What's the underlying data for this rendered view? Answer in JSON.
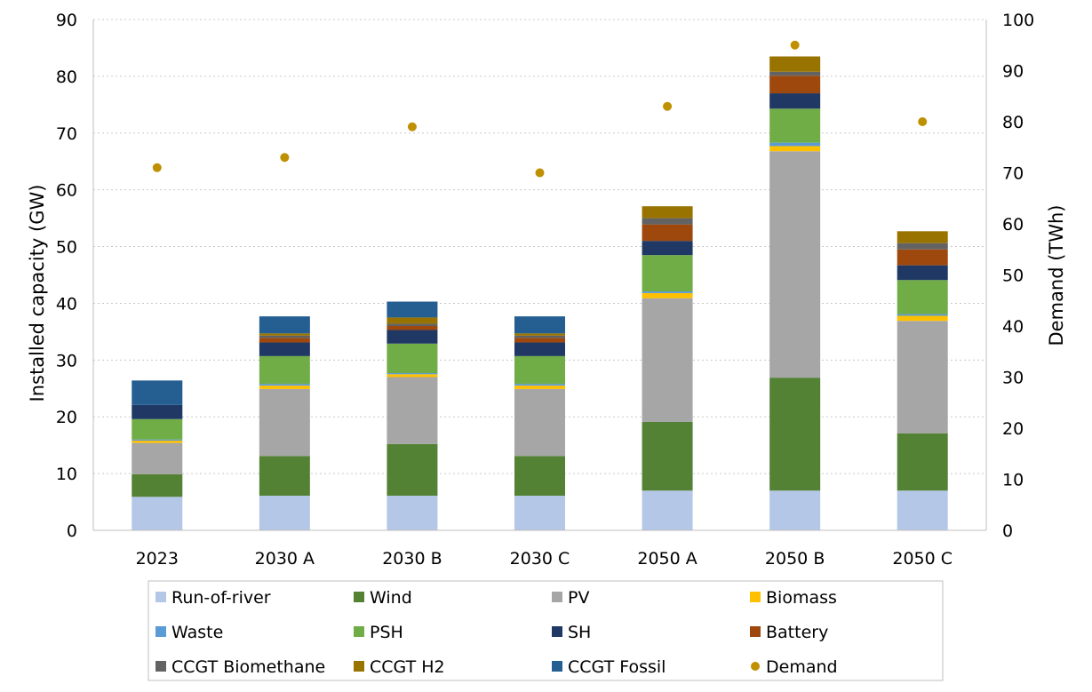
{
  "chart_data": {
    "type": "bar",
    "stacked": true,
    "categories": [
      "2023",
      "2030 A",
      "2030 B",
      "2030 C",
      "2050 A",
      "2050 B",
      "2050 C"
    ],
    "ylabel": "Installed capacity (GW)",
    "y2label": "Demand (TWh)",
    "ylim": [
      0,
      90
    ],
    "y2lim": [
      0,
      100
    ],
    "yticks": [
      0,
      10,
      20,
      30,
      40,
      50,
      60,
      70,
      80,
      90
    ],
    "y2ticks": [
      0,
      10,
      20,
      30,
      40,
      50,
      60,
      70,
      80,
      90,
      100
    ],
    "grid": "horizontal dotted",
    "legend_position": "bottom",
    "series": [
      {
        "name": "Run-of-river",
        "color": "#b4c7e7",
        "values": [
          5.9,
          6.1,
          6.1,
          6.1,
          7.0,
          7.0,
          7.0
        ]
      },
      {
        "name": "Wind",
        "color": "#548235",
        "values": [
          4.0,
          7.0,
          9.1,
          7.0,
          12.1,
          19.9,
          10.1
        ]
      },
      {
        "name": "PV",
        "color": "#a6a6a6",
        "values": [
          5.5,
          11.8,
          11.8,
          11.8,
          21.8,
          39.9,
          19.8
        ]
      },
      {
        "name": "Biomass",
        "color": "#ffc000",
        "values": [
          0.4,
          0.6,
          0.5,
          0.6,
          0.9,
          0.9,
          0.9
        ]
      },
      {
        "name": "Waste",
        "color": "#5b9bd5",
        "values": [
          0.2,
          0.3,
          0.2,
          0.3,
          0.3,
          0.6,
          0.3
        ]
      },
      {
        "name": "PSH",
        "color": "#70ad47",
        "values": [
          3.6,
          4.9,
          5.2,
          4.9,
          6.4,
          6.0,
          6.0
        ]
      },
      {
        "name": "SH",
        "color": "#203864",
        "values": [
          2.5,
          2.4,
          2.4,
          2.4,
          2.5,
          2.7,
          2.6
        ]
      },
      {
        "name": "Battery",
        "color": "#9e480e",
        "values": [
          0.0,
          0.8,
          0.7,
          0.8,
          2.9,
          3.1,
          2.8
        ]
      },
      {
        "name": "CCGT Biomethane",
        "color": "#636363",
        "values": [
          0.0,
          0.4,
          0.4,
          0.4,
          1.1,
          0.7,
          1.1
        ]
      },
      {
        "name": "CCGT H2",
        "color": "#997300",
        "values": [
          0.0,
          0.4,
          1.1,
          0.4,
          2.1,
          2.7,
          2.1
        ]
      },
      {
        "name": "CCGT Fossil",
        "color": "#255e91",
        "values": [
          4.3,
          3.0,
          2.8,
          3.0,
          0.0,
          0.0,
          0.0
        ]
      }
    ],
    "line_series": {
      "name": "Demand",
      "axis": "y2",
      "color": "#bf9000",
      "marker": "dot",
      "values": [
        71,
        73,
        79,
        70,
        83,
        95,
        80
      ]
    }
  }
}
